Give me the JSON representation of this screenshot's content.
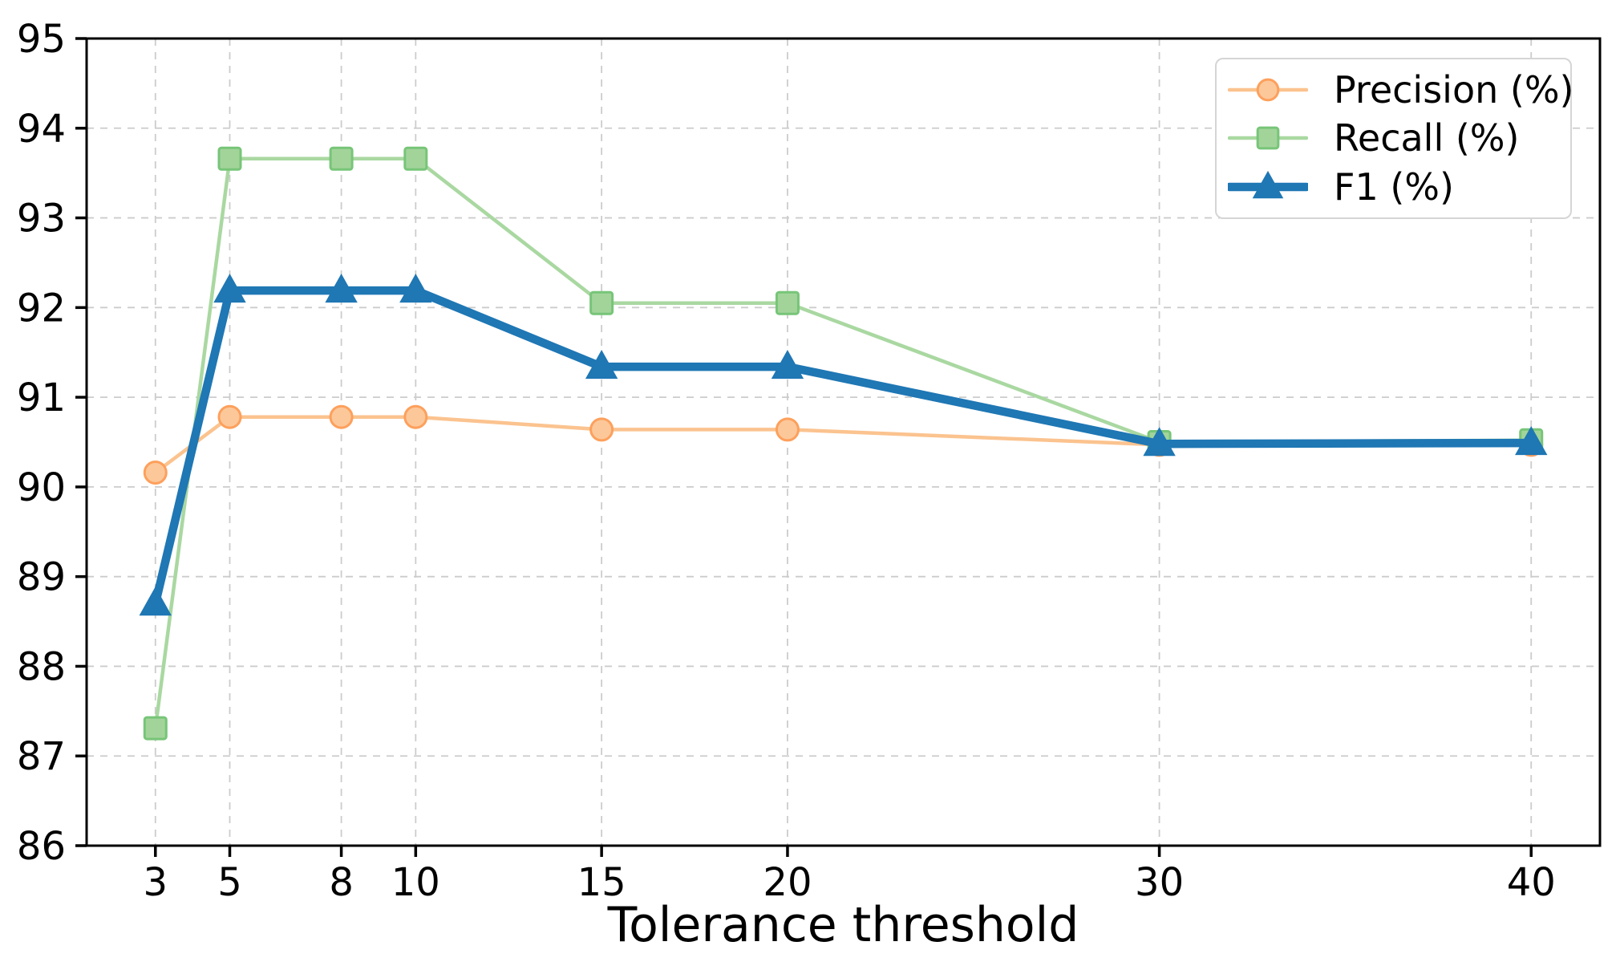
{
  "chart_data": {
    "type": "line",
    "title": "",
    "xlabel": "Tolerance threshold",
    "ylabel": "",
    "x": [
      3,
      5,
      8,
      10,
      15,
      20,
      30,
      40
    ],
    "xtick_labels": [
      "3",
      "5",
      "8",
      "10",
      "15",
      "20",
      "30",
      "40"
    ],
    "yticks": [
      86,
      87,
      88,
      89,
      90,
      91,
      92,
      93,
      94,
      95
    ],
    "ytick_labels": [
      "86",
      "87",
      "88",
      "89",
      "90",
      "91",
      "92",
      "93",
      "94",
      "95"
    ],
    "xlim": [
      1.15,
      41.85
    ],
    "ylim": [
      86,
      95
    ],
    "grid": "dashed both axes",
    "legend_position": "upper right",
    "series": [
      {
        "name": "Precision (%)",
        "marker": "circle",
        "line_color": "#fbc38f",
        "marker_fill": "#fcc89a",
        "marker_edge": "#fda05c",
        "line_width": 4.5,
        "values": [
          90.16,
          90.78,
          90.78,
          90.78,
          90.64,
          90.64,
          90.47,
          90.47
        ]
      },
      {
        "name": "Recall (%)",
        "marker": "square",
        "line_color": "#a9d8a1",
        "marker_fill": "#a2d49a",
        "marker_edge": "#77c578",
        "line_width": 4.5,
        "values": [
          87.31,
          93.66,
          93.66,
          93.66,
          92.05,
          92.05,
          90.5,
          90.52
        ]
      },
      {
        "name": "F1 (%)",
        "marker": "triangle",
        "line_color": "#1f77b4",
        "marker_fill": "#1f77b4",
        "marker_edge": "#1f77b4",
        "line_width": 10.5,
        "values": [
          88.7,
          92.19,
          92.19,
          92.19,
          91.34,
          91.34,
          90.48,
          90.49
        ]
      }
    ],
    "style": {
      "grid_color": "#cccccc",
      "spine_color": "#000000",
      "tick_color": "#000000",
      "background": "#ffffff",
      "legend_border": "#d5d5d5"
    }
  }
}
